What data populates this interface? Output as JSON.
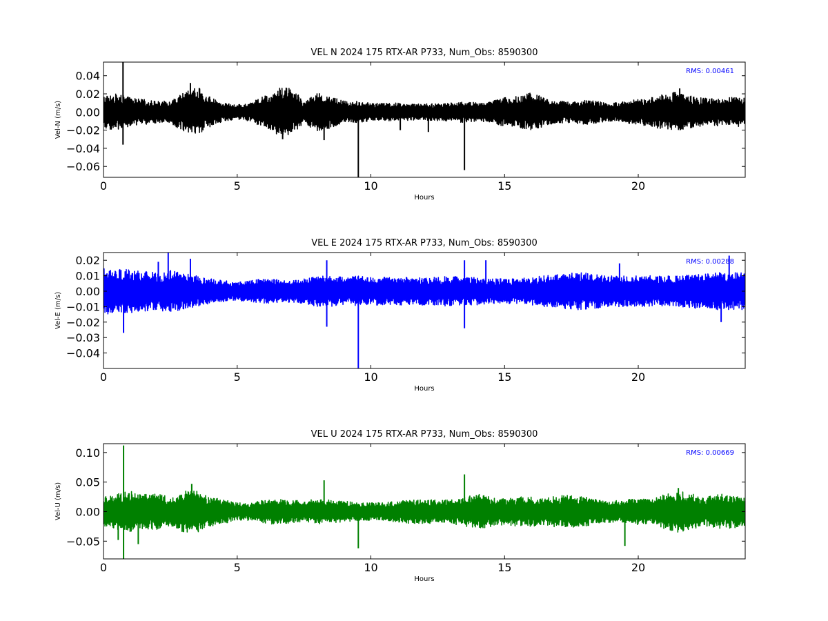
{
  "chart_data": [
    {
      "type": "line",
      "title": "VEL N 2024 175 RTX-AR  P733, Num_Obs: 8590300",
      "xlabel": "Hours",
      "ylabel": "Vel-N (m/s)",
      "xlim": [
        0,
        24
      ],
      "ylim": [
        -0.072,
        0.055
      ],
      "xticks": [
        0,
        5,
        10,
        15,
        20
      ],
      "yticks": [
        0.04,
        0.02,
        0.0,
        -0.02,
        -0.04,
        -0.06
      ],
      "xtick_labels": [
        "0",
        "5",
        "10",
        "15",
        "20"
      ],
      "ytick_labels": [
        "0.04",
        "0.02",
        "0.00",
        "−0.02",
        "−0.04",
        "−0.06"
      ],
      "grid": false,
      "annotation": "RMS:  0.00461",
      "color": "#000000",
      "series": [
        {
          "envelope": {
            "x": [
              0,
              0.5,
              1,
              1.5,
              2,
              2.5,
              3,
              3.5,
              4,
              4.5,
              5,
              5.5,
              6,
              6.5,
              7,
              7.5,
              8,
              8.5,
              9,
              9.5,
              10,
              10.5,
              11,
              11.5,
              12,
              12.5,
              13,
              13.5,
              14,
              14.5,
              15,
              15.5,
              16,
              16.5,
              17,
              17.5,
              18,
              18.5,
              19,
              19.5,
              20,
              20.5,
              21,
              21.5,
              22,
              22.5,
              23,
              23.5,
              24
            ],
            "upper": [
              0.018,
              0.02,
              0.016,
              0.014,
              0.012,
              0.012,
              0.022,
              0.028,
              0.016,
              0.01,
              0.008,
              0.01,
              0.018,
              0.026,
              0.028,
              0.012,
              0.022,
              0.018,
              0.012,
              0.012,
              0.01,
              0.01,
              0.01,
              0.009,
              0.009,
              0.01,
              0.01,
              0.012,
              0.01,
              0.012,
              0.016,
              0.018,
              0.022,
              0.016,
              0.012,
              0.012,
              0.014,
              0.012,
              0.01,
              0.012,
              0.014,
              0.016,
              0.022,
              0.022,
              0.018,
              0.016,
              0.016,
              0.016,
              0.016
            ],
            "lower": [
              -0.018,
              -0.02,
              -0.016,
              -0.014,
              -0.012,
              -0.012,
              -0.022,
              -0.025,
              -0.016,
              -0.01,
              -0.008,
              -0.01,
              -0.018,
              -0.026,
              -0.026,
              -0.012,
              -0.022,
              -0.018,
              -0.012,
              -0.012,
              -0.01,
              -0.01,
              -0.01,
              -0.009,
              -0.009,
              -0.01,
              -0.01,
              -0.012,
              -0.01,
              -0.012,
              -0.016,
              -0.018,
              -0.02,
              -0.016,
              -0.012,
              -0.012,
              -0.014,
              -0.012,
              -0.01,
              -0.012,
              -0.014,
              -0.016,
              -0.02,
              -0.02,
              -0.018,
              -0.016,
              -0.016,
              -0.016,
              -0.016
            ]
          },
          "spikes": [
            [
              0.73,
              -0.036,
              0.055
            ],
            [
              9.53,
              -0.072,
              0.0
            ],
            [
              13.5,
              -0.064,
              0.0
            ],
            [
              8.25,
              -0.031,
              0.0
            ],
            [
              11.1,
              -0.02,
              0.0
            ],
            [
              12.15,
              -0.022,
              0.0
            ],
            [
              3.25,
              0.0,
              0.032
            ],
            [
              6.7,
              -0.03,
              0.0
            ],
            [
              21.55,
              0.0,
              0.026
            ]
          ]
        }
      ]
    },
    {
      "type": "line",
      "title": "VEL E 2024 175 RTX-AR  P733, Num_Obs: 8590300",
      "xlabel": "Hours",
      "ylabel": "Vel-E (m/s)",
      "xlim": [
        0,
        24
      ],
      "ylim": [
        -0.05,
        0.025
      ],
      "xticks": [
        0,
        5,
        10,
        15,
        20
      ],
      "yticks": [
        0.02,
        0.01,
        0.0,
        -0.01,
        -0.02,
        -0.03,
        -0.04
      ],
      "xtick_labels": [
        "0",
        "5",
        "10",
        "15",
        "20"
      ],
      "ytick_labels": [
        "0.02",
        "0.01",
        "0.00",
        "−0.01",
        "−0.02",
        "−0.03",
        "−0.04"
      ],
      "grid": false,
      "annotation": "RMS:  0.00288",
      "color": "#0000ff",
      "series": [
        {
          "envelope": {
            "x": [
              0,
              0.5,
              1,
              1.5,
              2,
              2.5,
              3,
              3.5,
              4,
              4.5,
              5,
              5.5,
              6,
              6.5,
              7,
              7.5,
              8,
              8.5,
              9,
              9.5,
              10,
              10.5,
              11,
              11.5,
              12,
              12.5,
              13,
              13.5,
              14,
              14.5,
              15,
              15.5,
              16,
              16.5,
              17,
              17.5,
              18,
              18.5,
              19,
              19.5,
              20,
              20.5,
              21,
              21.5,
              22,
              22.5,
              23,
              23.5,
              24
            ],
            "upper": [
              0.015,
              0.014,
              0.014,
              0.013,
              0.012,
              0.014,
              0.012,
              0.01,
              0.008,
              0.007,
              0.006,
              0.007,
              0.008,
              0.008,
              0.007,
              0.008,
              0.01,
              0.01,
              0.009,
              0.01,
              0.009,
              0.009,
              0.009,
              0.009,
              0.009,
              0.009,
              0.01,
              0.009,
              0.009,
              0.008,
              0.008,
              0.008,
              0.009,
              0.01,
              0.011,
              0.012,
              0.012,
              0.011,
              0.01,
              0.01,
              0.01,
              0.01,
              0.01,
              0.01,
              0.011,
              0.011,
              0.012,
              0.012,
              0.012
            ],
            "lower": [
              -0.015,
              -0.014,
              -0.014,
              -0.013,
              -0.012,
              -0.014,
              -0.012,
              -0.01,
              -0.008,
              -0.007,
              -0.006,
              -0.007,
              -0.008,
              -0.008,
              -0.007,
              -0.008,
              -0.01,
              -0.01,
              -0.009,
              -0.01,
              -0.009,
              -0.009,
              -0.009,
              -0.009,
              -0.009,
              -0.009,
              -0.01,
              -0.009,
              -0.009,
              -0.008,
              -0.008,
              -0.008,
              -0.009,
              -0.01,
              -0.011,
              -0.012,
              -0.012,
              -0.011,
              -0.01,
              -0.01,
              -0.01,
              -0.01,
              -0.01,
              -0.01,
              -0.011,
              -0.011,
              -0.012,
              -0.012,
              -0.012
            ]
          },
          "spikes": [
            [
              9.53,
              -0.05,
              0.0
            ],
            [
              0.75,
              -0.027,
              0.0
            ],
            [
              8.35,
              -0.023,
              0.02
            ],
            [
              2.42,
              0.0,
              0.025
            ],
            [
              13.5,
              -0.024,
              0.02
            ],
            [
              14.3,
              0.0,
              0.02
            ],
            [
              19.3,
              0.0,
              0.018
            ],
            [
              23.1,
              -0.02,
              0.0
            ],
            [
              23.4,
              0.0,
              0.023
            ],
            [
              3.25,
              0.0,
              0.021
            ],
            [
              2.05,
              0.0,
              0.019
            ]
          ]
        }
      ]
    },
    {
      "type": "line",
      "title": "VEL U 2024 175 RTX-AR  P733, Num_Obs: 8590300",
      "xlabel": "Hours",
      "ylabel": "Vel-U (m/s)",
      "xlim": [
        0,
        24
      ],
      "ylim": [
        -0.08,
        0.115
      ],
      "xticks": [
        0,
        5,
        10,
        15,
        20
      ],
      "yticks": [
        0.1,
        0.05,
        0.0,
        -0.05
      ],
      "xtick_labels": [
        "0",
        "5",
        "10",
        "15",
        "20"
      ],
      "ytick_labels": [
        "0.10",
        "0.05",
        "0.00",
        "−0.05"
      ],
      "grid": false,
      "annotation": "RMS:  0.00669",
      "color": "#008000",
      "series": [
        {
          "envelope": {
            "x": [
              0,
              0.5,
              1,
              1.5,
              2,
              2.5,
              3,
              3.5,
              4,
              4.5,
              5,
              5.5,
              6,
              6.5,
              7,
              7.5,
              8,
              8.5,
              9,
              9.5,
              10,
              10.5,
              11,
              11.5,
              12,
              12.5,
              13,
              13.5,
              14,
              14.5,
              15,
              15.5,
              16,
              16.5,
              17,
              17.5,
              18,
              18.5,
              19,
              19.5,
              20,
              20.5,
              21,
              21.5,
              22,
              22.5,
              23,
              23.5,
              24
            ],
            "upper": [
              0.025,
              0.03,
              0.035,
              0.03,
              0.03,
              0.025,
              0.035,
              0.035,
              0.025,
              0.02,
              0.015,
              0.015,
              0.02,
              0.022,
              0.02,
              0.018,
              0.022,
              0.02,
              0.018,
              0.015,
              0.015,
              0.015,
              0.018,
              0.02,
              0.02,
              0.02,
              0.02,
              0.025,
              0.03,
              0.025,
              0.022,
              0.025,
              0.025,
              0.022,
              0.028,
              0.028,
              0.025,
              0.02,
              0.018,
              0.02,
              0.022,
              0.02,
              0.03,
              0.035,
              0.03,
              0.025,
              0.03,
              0.028,
              0.025
            ],
            "lower": [
              -0.025,
              -0.03,
              -0.035,
              -0.03,
              -0.03,
              -0.025,
              -0.035,
              -0.035,
              -0.025,
              -0.02,
              -0.015,
              -0.015,
              -0.02,
              -0.022,
              -0.02,
              -0.018,
              -0.022,
              -0.02,
              -0.018,
              -0.015,
              -0.015,
              -0.015,
              -0.018,
              -0.02,
              -0.02,
              -0.02,
              -0.02,
              -0.025,
              -0.03,
              -0.025,
              -0.022,
              -0.025,
              -0.025,
              -0.022,
              -0.028,
              -0.028,
              -0.025,
              -0.02,
              -0.018,
              -0.02,
              -0.022,
              -0.02,
              -0.03,
              -0.035,
              -0.03,
              -0.025,
              -0.03,
              -0.028,
              -0.025
            ]
          },
          "spikes": [
            [
              0.75,
              -0.08,
              0.112
            ],
            [
              8.25,
              0.0,
              0.053
            ],
            [
              9.53,
              -0.062,
              0.0
            ],
            [
              13.5,
              0.0,
              0.063
            ],
            [
              19.5,
              -0.058,
              0.0
            ],
            [
              1.3,
              -0.055,
              0.0
            ],
            [
              3.3,
              0.0,
              0.047
            ],
            [
              0.55,
              -0.048,
              0.0
            ],
            [
              21.5,
              0.0,
              0.04
            ]
          ]
        }
      ]
    }
  ]
}
